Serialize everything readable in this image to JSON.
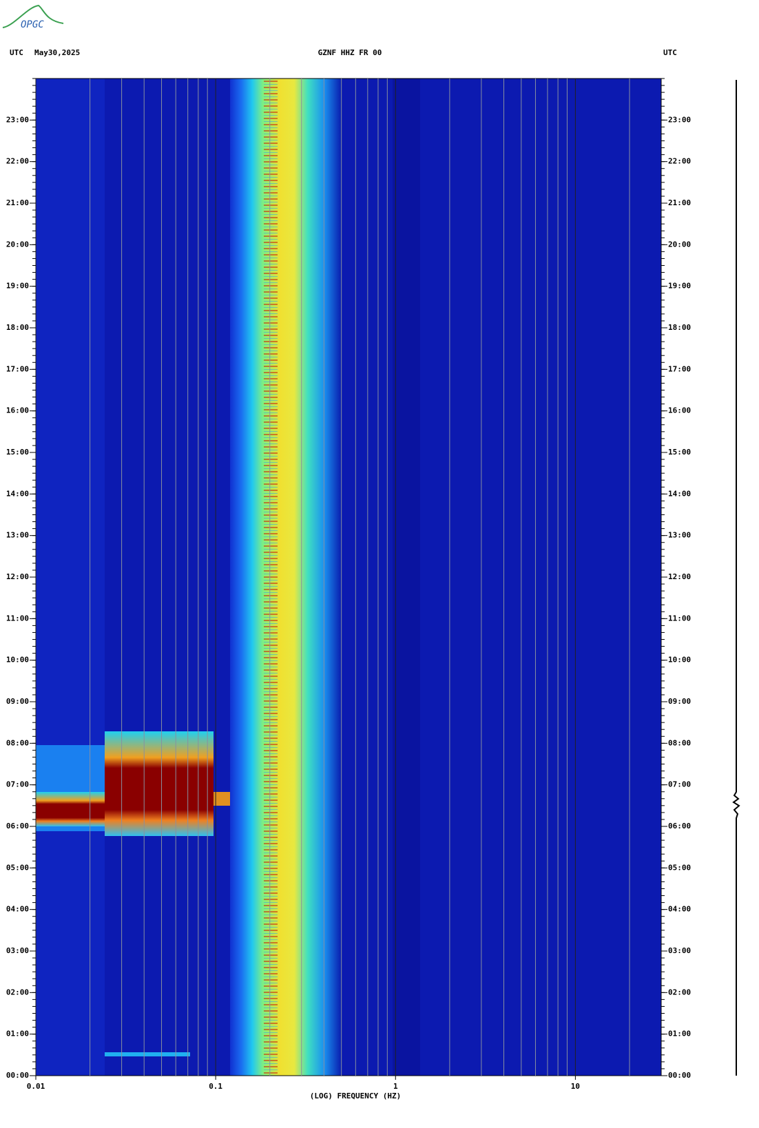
{
  "logo": "OPGC",
  "chart_data": {
    "type": "spectrogram",
    "title": "GZNF HHZ FR 00",
    "timezone": "UTC",
    "date": "May30,2025",
    "x_label": "(LOG) FREQUENCY (HZ)",
    "xscale": "log",
    "xlim": [
      0.01,
      30
    ],
    "xticks": [
      0.01,
      0.1,
      1,
      10
    ],
    "ylim": [
      0,
      24
    ],
    "yticks": [
      {
        "value": 0,
        "label": "00:00"
      },
      {
        "value": 1,
        "label": "01:00"
      },
      {
        "value": 2,
        "label": "02:00"
      },
      {
        "value": 3,
        "label": "03:00"
      },
      {
        "value": 4,
        "label": "04:00"
      },
      {
        "value": 5,
        "label": "05:00"
      },
      {
        "value": 6,
        "label": "06:00"
      },
      {
        "value": 7,
        "label": "07:00"
      },
      {
        "value": 8,
        "label": "08:00"
      },
      {
        "value": 9,
        "label": "09:00"
      },
      {
        "value": 10,
        "label": "10:00"
      },
      {
        "value": 11,
        "label": "11:00"
      },
      {
        "value": 12,
        "label": "12:00"
      },
      {
        "value": 13,
        "label": "13:00"
      },
      {
        "value": 14,
        "label": "14:00"
      },
      {
        "value": 15,
        "label": "15:00"
      },
      {
        "value": 16,
        "label": "16:00"
      },
      {
        "value": 17,
        "label": "17:00"
      },
      {
        "value": 18,
        "label": "18:00"
      },
      {
        "value": 19,
        "label": "19:00"
      },
      {
        "value": 20,
        "label": "20:00"
      },
      {
        "value": 21,
        "label": "21:00"
      },
      {
        "value": 22,
        "label": "22:00"
      },
      {
        "value": 23,
        "label": "23:00"
      }
    ],
    "grid": true
  }
}
